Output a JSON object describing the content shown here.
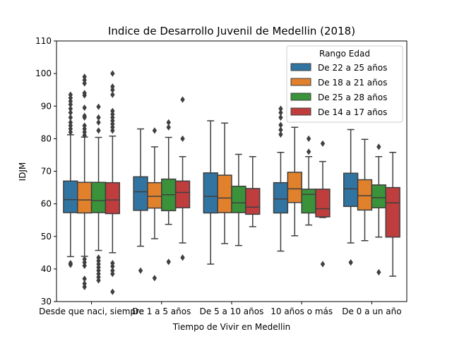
{
  "chart_data": {
    "type": "box",
    "title": "Indice de Desarrollo Juvenil de Medellin (2018)",
    "xlabel": "Tiempo de Vivir en Medellin",
    "ylabel": "IDJM",
    "ylim": [
      30,
      110
    ],
    "yticks": [
      30,
      40,
      50,
      60,
      70,
      80,
      90,
      100,
      110
    ],
    "grid": false,
    "legend_title": "Rango Edad",
    "legend_position": "top-right",
    "categories": [
      "Desde que naci, siempre",
      "De 1 a 5 años",
      "De 5 a 10 años",
      "10 años o más",
      "De 0 a un año"
    ],
    "series": [
      {
        "name": "De 22 a 25 años",
        "color": "#3274a1",
        "boxes": [
          {
            "whislo": 43.8,
            "q1": 57.3,
            "med": 61.3,
            "q3": 67.0,
            "whishi": 81.2,
            "fliers": [
              41.3,
              41.8,
              82.0,
              83.0,
              84.0,
              85.0,
              86.5,
              88.0,
              89.2,
              90.5,
              91.5,
              92.5,
              93.5
            ]
          },
          {
            "whislo": 47.0,
            "q1": 58.0,
            "med": 63.7,
            "q3": 68.3,
            "whishi": 83.0,
            "fliers": [
              39.5
            ]
          },
          {
            "whislo": 41.5,
            "q1": 57.2,
            "med": 62.3,
            "q3": 69.5,
            "whishi": 85.5,
            "fliers": []
          },
          {
            "whislo": 45.5,
            "q1": 57.2,
            "med": 61.5,
            "q3": 66.5,
            "whishi": 75.8,
            "fliers": [
              81.3,
              82.7,
              84.2,
              86.5,
              88.0,
              89.2
            ]
          },
          {
            "whislo": 48.0,
            "q1": 59.2,
            "med": 64.6,
            "q3": 69.4,
            "whishi": 82.8,
            "fliers": [
              42.0
            ]
          }
        ]
      },
      {
        "name": "De 18 a 21 años",
        "color": "#e1812c",
        "boxes": [
          {
            "whislo": 43.9,
            "q1": 57.2,
            "med": 61.2,
            "q3": 66.6,
            "whishi": 80.5,
            "fliers": [
              34.5,
              35.5,
              37.0,
              41.0,
              42.0,
              43.0,
              81.0,
              82.0,
              83.0,
              84.0,
              86.5,
              87.0,
              89.5,
              93.3,
              94.0,
              97.0,
              98.0,
              99.0
            ]
          },
          {
            "whislo": 49.3,
            "q1": 58.7,
            "med": 62.3,
            "q3": 66.5,
            "whishi": 77.5,
            "fliers": [
              37.2,
              82.5
            ]
          },
          {
            "whislo": 47.8,
            "q1": 57.3,
            "med": 61.8,
            "q3": 68.8,
            "whishi": 84.8,
            "fliers": []
          },
          {
            "whislo": 50.2,
            "q1": 60.4,
            "med": 64.6,
            "q3": 69.7,
            "whishi": 83.5,
            "fliers": []
          },
          {
            "whislo": 48.7,
            "q1": 58.1,
            "med": 62.5,
            "q3": 67.4,
            "whishi": 79.8,
            "fliers": []
          }
        ]
      },
      {
        "name": "De 25 a 28 años",
        "color": "#3a923a",
        "boxes": [
          {
            "whislo": 45.7,
            "q1": 57.3,
            "med": 61.0,
            "q3": 66.6,
            "whishi": 80.4,
            "fliers": [
              36.5,
              37.5,
              38.5,
              39.5,
              40.5,
              41.5,
              42.5,
              43.5,
              82.5,
              85.0,
              86.5,
              89.8
            ]
          },
          {
            "whislo": 53.7,
            "q1": 57.9,
            "med": 62.8,
            "q3": 67.6,
            "whishi": 80.4,
            "fliers": [
              42.2,
              83.5,
              85.0
            ]
          },
          {
            "whislo": 47.2,
            "q1": 57.3,
            "med": 60.3,
            "q3": 65.4,
            "whishi": 75.2,
            "fliers": []
          },
          {
            "whislo": 53.5,
            "q1": 57.2,
            "med": 62.9,
            "q3": 64.5,
            "whishi": 74.5,
            "fliers": [
              76.0,
              80.0
            ]
          },
          {
            "whislo": 49.8,
            "q1": 58.8,
            "med": 61.9,
            "q3": 65.8,
            "whishi": 74.5,
            "fliers": [
              39.0,
              77.5
            ]
          }
        ]
      },
      {
        "name": "De 14 a 17 años",
        "color": "#c03d3e",
        "boxes": [
          {
            "whislo": 45.0,
            "q1": 57.0,
            "med": 61.2,
            "q3": 66.5,
            "whishi": 80.8,
            "fliers": [
              33.0,
              38.5,
              39.5,
              40.8,
              41.8,
              82.5,
              83.5,
              84.5,
              85.5,
              86.5,
              87.5,
              88.5,
              93.5,
              95.0,
              96.0,
              100.0
            ]
          },
          {
            "whislo": 48.0,
            "q1": 58.8,
            "med": 63.5,
            "q3": 67.0,
            "whishi": 74.5,
            "fliers": [
              43.5,
              80.0,
              92.0
            ]
          },
          {
            "whislo": 53.0,
            "q1": 56.8,
            "med": 59.0,
            "q3": 64.7,
            "whishi": 74.5,
            "fliers": []
          },
          {
            "whislo": 55.8,
            "q1": 56.0,
            "med": 58.5,
            "q3": 64.5,
            "whishi": 73.0,
            "fliers": [
              41.5,
              78.5
            ]
          },
          {
            "whislo": 37.8,
            "q1": 49.8,
            "med": 60.3,
            "q3": 65.0,
            "whishi": 75.8,
            "fliers": []
          }
        ]
      }
    ]
  }
}
